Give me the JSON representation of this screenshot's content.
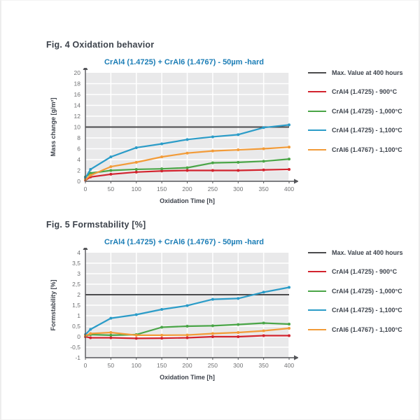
{
  "page": {
    "background": "#ffffff",
    "accent_title_color": "#1b7db6",
    "text_color": "#3d434c"
  },
  "figures": [
    {
      "fig_label": "Fig. 4 Oxidation behavior"
    },
    {
      "fig_label": "Fig. 5 Formstability [%]"
    }
  ],
  "chart_data": [
    {
      "type": "line",
      "title": "CrAl4 (1.4725) + CrAl6 (1.4767) - 50µm -hard",
      "xlabel": "Oxidation Time [h]",
      "ylabel": "Mass change [g/m²]",
      "xlim": [
        0,
        400
      ],
      "ylim": [
        0,
        20
      ],
      "xtick_values": [
        0,
        50,
        100,
        150,
        200,
        250,
        300,
        350,
        400
      ],
      "xtick_labels": [
        "0",
        "50",
        "100",
        "150",
        "200",
        "250",
        "300",
        "350",
        "400"
      ],
      "ytick_values": [
        0,
        2,
        4,
        6,
        8,
        10,
        12,
        14,
        16,
        18,
        20
      ],
      "ytick_labels": [
        "0",
        "2",
        "4",
        "6",
        "8",
        "10",
        "12",
        "14",
        "16",
        "18",
        "20"
      ],
      "grid": true,
      "legend_position": "right",
      "x": [
        0,
        10,
        50,
        100,
        150,
        200,
        250,
        300,
        350,
        400
      ],
      "max_line": {
        "label": "Max. Value at 400 hours",
        "value": 10,
        "color": "#4b4b4d"
      },
      "series": [
        {
          "name": "CrAl4 (1.4725) - 900°C",
          "color": "#d2232e",
          "values": [
            0.2,
            0.8,
            1.3,
            1.7,
            1.9,
            2.0,
            2.0,
            2.0,
            2.1,
            2.2
          ]
        },
        {
          "name": "CrAl4 (1.4725) - 1,000°C",
          "color": "#4aa547",
          "values": [
            0.8,
            1.5,
            2.0,
            2.2,
            2.3,
            2.5,
            3.4,
            3.5,
            3.7,
            4.1
          ]
        },
        {
          "name": "CrAl4 (1.4725) - 1,100°C",
          "color": "#2b9cc8",
          "values": [
            0.6,
            2.2,
            4.5,
            6.2,
            6.9,
            7.7,
            8.2,
            8.6,
            9.9,
            10.4
          ]
        },
        {
          "name": "CrAl6 (1.4767) - 1,100°C",
          "color": "#f29b38",
          "values": [
            0.3,
            1.1,
            2.7,
            3.5,
            4.5,
            5.2,
            5.6,
            5.8,
            6.0,
            6.3
          ]
        }
      ],
      "colors": {
        "plot_bg": "#e9e9ea",
        "grid": "#ffffff",
        "axis": "#55565a"
      }
    },
    {
      "type": "line",
      "title": "CrAl4 (1.4725) + CrAl6 (1.4767) - 50µm -hard",
      "xlabel": "Oxidation Time [h]",
      "ylabel": "Formstability [%]",
      "xlim": [
        0,
        400
      ],
      "ylim": [
        -1,
        4
      ],
      "xtick_values": [
        0,
        50,
        100,
        150,
        200,
        250,
        300,
        350,
        400
      ],
      "xtick_labels": [
        "0",
        "50",
        "100",
        "150",
        "200",
        "250",
        "300",
        "350",
        "400"
      ],
      "ytick_values": [
        -1,
        -0.5,
        0,
        0.5,
        1,
        1.5,
        2,
        2.5,
        3,
        3.5,
        4
      ],
      "ytick_labels": [
        "-1",
        "-0,5",
        "0",
        "0,5",
        "1",
        "1,5",
        "2",
        "2,5",
        "3",
        "3,5",
        "4"
      ],
      "grid": true,
      "legend_position": "right",
      "x": [
        0,
        10,
        50,
        100,
        150,
        200,
        250,
        300,
        350,
        400
      ],
      "max_line": {
        "label": "Max. Value at 400 hours",
        "value": 2,
        "color": "#4b4b4d"
      },
      "series": [
        {
          "name": "CrAl4 (1.4725) - 900°C",
          "color": "#d2232e",
          "values": [
            0.0,
            -0.05,
            -0.05,
            -0.08,
            -0.07,
            -0.05,
            0.0,
            0.0,
            0.05,
            0.05
          ]
        },
        {
          "name": "CrAl4 (1.4725) - 1,000°C",
          "color": "#4aa547",
          "values": [
            0.05,
            0.1,
            0.07,
            0.1,
            0.45,
            0.5,
            0.52,
            0.58,
            0.65,
            0.6
          ]
        },
        {
          "name": "CrAl4 (1.4725) - 1,100°C",
          "color": "#2b9cc8",
          "values": [
            0.1,
            0.35,
            0.88,
            1.05,
            1.3,
            1.48,
            1.78,
            1.82,
            2.12,
            2.35
          ]
        },
        {
          "name": "CrAl6 (1.4767) - 1,100°C",
          "color": "#f29b38",
          "values": [
            0.05,
            0.15,
            0.2,
            0.07,
            0.07,
            0.08,
            0.15,
            0.2,
            0.28,
            0.4
          ]
        }
      ],
      "colors": {
        "plot_bg": "#e9e9ea",
        "grid": "#ffffff",
        "axis": "#55565a"
      }
    }
  ]
}
